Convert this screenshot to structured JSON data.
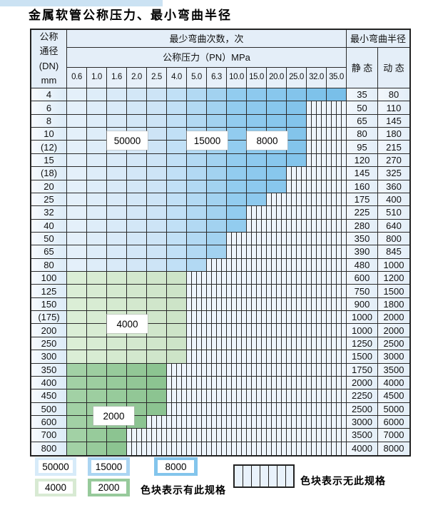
{
  "page": {
    "title": "金属软管公称压力、最小弯曲半径"
  },
  "table": {
    "dn_header_lines": [
      "公称",
      "通径",
      "(DN)",
      "mm"
    ],
    "bend_cycles_header": "最少弯曲次数，次",
    "pressure_header": "公称压力（PN）MPa",
    "bend_radius_header": "最小弯曲半径",
    "static_header": "静 态",
    "dynamic_header": "动 态",
    "pressure_columns": [
      "0.6",
      "1.0",
      "1.6",
      "2.0",
      "2.5",
      "4.0",
      "5.0",
      "6.3",
      "10.0",
      "15.0",
      "20.0",
      "25.0",
      "32.0",
      "35.0"
    ]
  },
  "chart_data": {
    "type": "table",
    "title": "金属软管公称压力、最小弯曲半径",
    "pressure_columns_MPa": [
      0.6,
      1.0,
      1.6,
      2.0,
      2.5,
      4.0,
      5.0,
      6.3,
      10.0,
      15.0,
      20.0,
      25.0,
      32.0,
      35.0
    ],
    "bend_cycle_column_bands_for_blue_rows": [
      {
        "cycles": 50000,
        "from_MPa": "0.6",
        "to_MPa": "2.5"
      },
      {
        "cycles": 15000,
        "from_MPa": "4.0",
        "to_MPa": "6.3"
      },
      {
        "cycles": 8000,
        "from_MPa": "10.0",
        "to_MPa": "35.0"
      }
    ],
    "rows": [
      {
        "dn": "4",
        "available_through_MPa": "35.0",
        "band": "blue",
        "static_mm": 35,
        "dynamic_mm": 80
      },
      {
        "dn": "6",
        "available_through_MPa": "25.0",
        "band": "blue",
        "static_mm": 50,
        "dynamic_mm": 110
      },
      {
        "dn": "8",
        "available_through_MPa": "25.0",
        "band": "blue",
        "static_mm": 65,
        "dynamic_mm": 145
      },
      {
        "dn": "10",
        "available_through_MPa": "25.0",
        "band": "blue",
        "static_mm": 80,
        "dynamic_mm": 180
      },
      {
        "dn": "(12)",
        "available_through_MPa": "25.0",
        "band": "blue",
        "static_mm": 95,
        "dynamic_mm": 215
      },
      {
        "dn": "15",
        "available_through_MPa": "25.0",
        "band": "blue",
        "static_mm": 120,
        "dynamic_mm": 270
      },
      {
        "dn": "(18)",
        "available_through_MPa": "20.0",
        "band": "blue",
        "static_mm": 145,
        "dynamic_mm": 325
      },
      {
        "dn": "20",
        "available_through_MPa": "20.0",
        "band": "blue",
        "static_mm": 160,
        "dynamic_mm": 360
      },
      {
        "dn": "25",
        "available_through_MPa": "15.0",
        "band": "blue",
        "static_mm": 175,
        "dynamic_mm": 400
      },
      {
        "dn": "32",
        "available_through_MPa": "10.0",
        "band": "blue",
        "static_mm": 225,
        "dynamic_mm": 510
      },
      {
        "dn": "40",
        "available_through_MPa": "10.0",
        "band": "blue",
        "static_mm": 280,
        "dynamic_mm": 640
      },
      {
        "dn": "50",
        "available_through_MPa": "6.3",
        "band": "blue",
        "static_mm": 350,
        "dynamic_mm": 800
      },
      {
        "dn": "65",
        "available_through_MPa": "6.3",
        "band": "blue",
        "static_mm": 390,
        "dynamic_mm": 845
      },
      {
        "dn": "80",
        "available_through_MPa": "5.0",
        "band": "blue",
        "static_mm": 480,
        "dynamic_mm": 1000
      },
      {
        "dn": "100",
        "available_through_MPa": "4.0",
        "band": "4000",
        "static_mm": 600,
        "dynamic_mm": 1200
      },
      {
        "dn": "125",
        "available_through_MPa": "4.0",
        "band": "4000",
        "static_mm": 750,
        "dynamic_mm": 1500
      },
      {
        "dn": "150",
        "available_through_MPa": "4.0",
        "band": "4000",
        "static_mm": 900,
        "dynamic_mm": 1800
      },
      {
        "dn": "(175)",
        "available_through_MPa": "4.0",
        "band": "4000",
        "static_mm": 1000,
        "dynamic_mm": 2000
      },
      {
        "dn": "200",
        "available_through_MPa": "4.0",
        "band": "4000",
        "static_mm": 1000,
        "dynamic_mm": 2000
      },
      {
        "dn": "250",
        "available_through_MPa": "4.0",
        "band": "4000",
        "static_mm": 1250,
        "dynamic_mm": 2500
      },
      {
        "dn": "300",
        "available_through_MPa": "4.0",
        "band": "4000",
        "static_mm": 1500,
        "dynamic_mm": 3000
      },
      {
        "dn": "350",
        "available_through_MPa": "2.5",
        "band": "2000",
        "static_mm": 1750,
        "dynamic_mm": 3500
      },
      {
        "dn": "400",
        "available_through_MPa": "2.5",
        "band": "2000",
        "static_mm": 2000,
        "dynamic_mm": 4000
      },
      {
        "dn": "450",
        "available_through_MPa": "2.5",
        "band": "2000",
        "static_mm": 2250,
        "dynamic_mm": 4500
      },
      {
        "dn": "500",
        "available_through_MPa": "2.5",
        "band": "2000",
        "static_mm": 2500,
        "dynamic_mm": 5000
      },
      {
        "dn": "600",
        "available_through_MPa": "2.0",
        "band": "2000",
        "static_mm": 3000,
        "dynamic_mm": 6000
      },
      {
        "dn": "700",
        "available_through_MPa": "1.6",
        "band": "2000",
        "static_mm": 3500,
        "dynamic_mm": 7000
      },
      {
        "dn": "800",
        "available_through_MPa": "1.6",
        "band": "2000",
        "static_mm": 4000,
        "dynamic_mm": 8000
      }
    ]
  },
  "overlay_labels": {
    "l50000": "50000",
    "l15000": "15000",
    "l8000": "8000",
    "l4000": "4000",
    "l2000": "2000"
  },
  "legend": {
    "swatches": [
      {
        "label": "50000",
        "color": "#d7ebf9"
      },
      {
        "label": "15000",
        "color": "#abd5f2"
      },
      {
        "label": "8000",
        "color": "#83c5ec"
      },
      {
        "label": "4000",
        "color": "#d8ead3"
      },
      {
        "label": "2000",
        "color": "#97ca9b"
      }
    ],
    "has_spec_text": "色块表示有此规格",
    "no_spec_text": "色块表示无此规格"
  },
  "colors": {
    "blue_bands": [
      {
        "start": 0,
        "end": 4,
        "from": "#e4f0fa",
        "to": "#cde4f6"
      },
      {
        "start": 5,
        "end": 7,
        "from": "#c1e0f6",
        "to": "#a2d2f0"
      },
      {
        "start": 8,
        "end": 13,
        "from": "#92ccef",
        "to": "#79bfe9"
      }
    ],
    "green_4000": {
      "from": "#dbeed6",
      "to": "#cde4c8"
    },
    "green_2000": {
      "from": "#a2d1a5",
      "to": "#8cc491"
    },
    "hatch_fill": "#eef5fc",
    "grid_line": "#2a2a2a"
  }
}
